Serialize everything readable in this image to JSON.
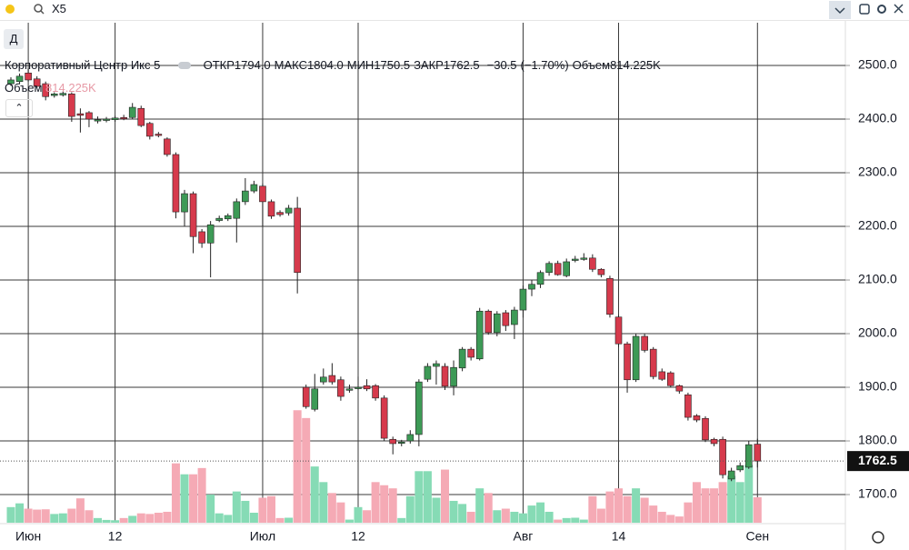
{
  "header": {
    "search": "X5",
    "interval": "Д"
  },
  "chart_data": {
    "type": "candlestick",
    "title": "Корпоративный Центр Икс 5",
    "categories": [
      null,
      null,
      "Июн",
      null,
      null,
      null,
      null,
      null,
      null,
      null,
      null,
      null,
      "12",
      null,
      null,
      null,
      null,
      null,
      null,
      null,
      null,
      null,
      null,
      null,
      null,
      null,
      null,
      null,
      null,
      "Июл",
      null,
      null,
      null,
      null,
      null,
      null,
      null,
      null,
      null,
      null,
      "12",
      null,
      null,
      null,
      null,
      null,
      null,
      null,
      null,
      null,
      null,
      null,
      null,
      null,
      null,
      null,
      null,
      null,
      null,
      "Авг",
      null,
      null,
      null,
      null,
      null,
      null,
      null,
      null,
      null,
      null,
      "14",
      null,
      null,
      null,
      null,
      null,
      null,
      null,
      null,
      null,
      null,
      null,
      null,
      null,
      null,
      null,
      "Сен"
    ],
    "open": [
      2466,
      2470,
      2486,
      2475,
      2466,
      2444,
      2445,
      2447,
      2410,
      2412,
      2397,
      2398,
      2399,
      2403,
      2403,
      2420,
      2392,
      2372,
      2363,
      2334,
      2227,
      2261,
      2190,
      2169,
      2211,
      2214,
      2215,
      2246,
      2266,
      2275,
      2246,
      2226,
      2225,
      2234,
      1900,
      1859,
      1910,
      1922,
      1914,
      1895,
      1898,
      1903,
      1903,
      1880,
      1803,
      1796,
      1800,
      1812,
      1915,
      1939,
      1939,
      1902,
      1936,
      1971,
      1953,
      2042,
      2002,
      2039,
      2017,
      2044,
      2083,
      2092,
      2114,
      2131,
      2108,
      2137,
      2140,
      2141,
      2120,
      2103,
      2031,
      1981,
      1914,
      1995,
      1971,
      1929,
      1927,
      1903,
      1886,
      1847,
      1842,
      1803,
      1803,
      1729,
      1746,
      1751,
      1794
    ],
    "high": [
      2478,
      2485,
      2495,
      2480,
      2470,
      2450,
      2452,
      2450,
      2420,
      2415,
      2405,
      2404,
      2406,
      2408,
      2430,
      2425,
      2395,
      2376,
      2366,
      2338,
      2268,
      2265,
      2195,
      2210,
      2220,
      2224,
      2252,
      2290,
      2285,
      2280,
      2250,
      2230,
      2240,
      2255,
      1905,
      1925,
      1935,
      1945,
      1920,
      1905,
      1920,
      1915,
      1906,
      1885,
      1808,
      1802,
      1820,
      1915,
      1945,
      1950,
      1945,
      1950,
      1975,
      1975,
      2048,
      2045,
      2042,
      2044,
      2050,
      2090,
      2100,
      2118,
      2135,
      2136,
      2140,
      2145,
      2150,
      2148,
      2122,
      2108,
      2035,
      1985,
      2000,
      2000,
      1975,
      1935,
      1930,
      1905,
      1890,
      1850,
      1846,
      1806,
      1808,
      1750,
      1760,
      1800,
      1804
    ],
    "low": [
      2462,
      2465,
      2470,
      2458,
      2435,
      2440,
      2442,
      2395,
      2375,
      2385,
      2392,
      2394,
      2395,
      2398,
      2400,
      2385,
      2362,
      2366,
      2330,
      2215,
      2200,
      2150,
      2160,
      2105,
      2208,
      2210,
      2170,
      2240,
      2262,
      2200,
      2214,
      2218,
      2220,
      2075,
      1860,
      1855,
      1905,
      1905,
      1875,
      1890,
      1895,
      1893,
      1875,
      1800,
      1775,
      1790,
      1795,
      1790,
      1910,
      1905,
      1895,
      1885,
      1930,
      1950,
      1950,
      1998,
      1995,
      2005,
      1990,
      2030,
      2070,
      2085,
      2108,
      2108,
      2105,
      2133,
      2136,
      2115,
      2105,
      2030,
      1975,
      1890,
      1910,
      1965,
      1915,
      1912,
      1900,
      1888,
      1838,
      1835,
      1798,
      1790,
      1730,
      1725,
      1742,
      1748,
      1750.5
    ],
    "close": [
      2473,
      2480,
      2473,
      2461,
      2442,
      2447,
      2448,
      2405,
      2407,
      2400,
      2399,
      2400,
      2402,
      2401,
      2422,
      2388,
      2368,
      2370,
      2334,
      2227,
      2261,
      2181,
      2169,
      2203,
      2215,
      2220,
      2246,
      2266,
      2278,
      2246,
      2219,
      2222,
      2234,
      2114,
      1864,
      1897,
      1919,
      1910,
      1883,
      1897,
      1900,
      1897,
      1880,
      1805,
      1795,
      1798,
      1812,
      1910,
      1939,
      1944,
      1902,
      1937,
      1971,
      1956,
      2042,
      2002,
      2037,
      2015,
      2044,
      2083,
      2092,
      2114,
      2131,
      2110,
      2134,
      2139,
      2141,
      2120,
      2110,
      2036,
      1981,
      1914,
      1995,
      1969,
      1920,
      1915,
      1903,
      1893,
      1844,
      1839,
      1802,
      1795,
      1737,
      1744,
      1754,
      1793,
      1762.5
    ],
    "volume": [
      500,
      620,
      450,
      420,
      430,
      280,
      300,
      450,
      780,
      400,
      150,
      90,
      80,
      150,
      220,
      300,
      280,
      320,
      350,
      1900,
      1550,
      1550,
      1750,
      900,
      300,
      250,
      1000,
      700,
      320,
      800,
      850,
      150,
      160,
      3600,
      3350,
      1800,
      1300,
      950,
      650,
      100,
      500,
      400,
      1300,
      1200,
      1100,
      150,
      850,
      1650,
      1650,
      800,
      1700,
      700,
      600,
      350,
      1100,
      950,
      400,
      450,
      350,
      300,
      550,
      650,
      350,
      100,
      150,
      160,
      100,
      850,
      450,
      1000,
      1100,
      850,
      1100,
      800,
      550,
      350,
      250,
      200,
      650,
      1300,
      1100,
      1100,
      1300,
      1500,
      1300,
      1850,
      814.225
    ],
    "up_color": "#3d9a56",
    "down_color": "#d63a4c",
    "volume_up_color": "#86dbb5",
    "volume_down_color": "#f5aab5",
    "ylim": [
      1647.5,
      2579.7
    ],
    "volume_ylim": [
      0,
      16000
    ],
    "yticks": [
      {
        "value": 1700,
        "label": "1700.0"
      },
      {
        "value": 1800,
        "label": "1800.0"
      },
      {
        "value": 1900,
        "label": "1900.0"
      },
      {
        "value": 2000,
        "label": "2000.0"
      },
      {
        "value": 2100,
        "label": "2100.0"
      },
      {
        "value": 2200,
        "label": "2200.0"
      },
      {
        "value": 2300,
        "label": "2300.0"
      },
      {
        "value": 2400,
        "label": "2400.0"
      },
      {
        "value": 2500,
        "label": "2500.0"
      }
    ],
    "grid": true,
    "legend_items": [
      {
        "name": "ОТКР",
        "value": 1794,
        "value_label": "1794.0"
      },
      {
        "name": "МАКС",
        "value": 1804,
        "value_label": "1804.0"
      },
      {
        "name": "МИН",
        "value": 1750.5,
        "value_label": "1750.5"
      },
      {
        "name": "ЗАКР",
        "value": 1762.5,
        "value_label": "1762.5"
      }
    ],
    "change": {
      "value": -30.5,
      "value_label": "−30.5",
      "percent": -1.7,
      "percent_label": "(−1.70%)"
    },
    "volume_legend": {
      "name": "Объем",
      "value": 814.225,
      "value_label": "814.225K"
    }
  }
}
